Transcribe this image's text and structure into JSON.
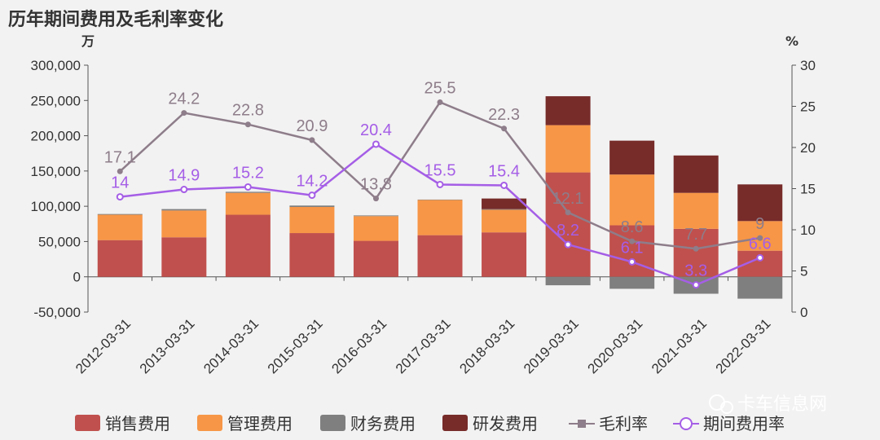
{
  "chart_data": {
    "type": "bar",
    "title": "历年期间费用及毛利率变化",
    "y_left_unit": "万",
    "y_right_unit": "%",
    "categories": [
      "2012-03-31",
      "2013-03-31",
      "2014-03-31",
      "2015-03-31",
      "2016-03-31",
      "2017-03-31",
      "2018-03-31",
      "2019-03-31",
      "2020-03-31",
      "2021-03-31",
      "2022-03-31"
    ],
    "y_left": {
      "min": -50000,
      "max": 300000,
      "ticks": [
        "300,000",
        "250,000",
        "200,000",
        "150,000",
        "100,000",
        "50,000",
        "0",
        "-50,000"
      ]
    },
    "y_right": {
      "min": 0,
      "max": 30,
      "ticks": [
        "30",
        "25",
        "20",
        "15",
        "10",
        "5",
        "0"
      ]
    },
    "stack_series": [
      {
        "name": "销售费用",
        "color": "#c0504d",
        "values": [
          52000,
          56000,
          88000,
          62000,
          51000,
          59000,
          63000,
          148000,
          73000,
          68000,
          37000
        ]
      },
      {
        "name": "管理费用",
        "color": "#f79646",
        "values": [
          36000,
          38000,
          31000,
          37000,
          35000,
          50000,
          32000,
          67000,
          72000,
          51000,
          42000
        ]
      },
      {
        "name": "财务费用",
        "color": "#7f7f7f",
        "values": [
          1000,
          2000,
          1500,
          2000,
          1000,
          500,
          1000,
          -12000,
          -17000,
          -24000,
          -31000
        ]
      },
      {
        "name": "研发费用",
        "color": "#772c2a",
        "values": [
          0,
          0,
          0,
          0,
          0,
          0,
          15000,
          41000,
          48000,
          53000,
          52000
        ]
      }
    ],
    "line_series": [
      {
        "name": "毛利率",
        "color": "#8e7d8a",
        "values": [
          17.1,
          24.2,
          22.8,
          20.9,
          13.8,
          25.5,
          22.3,
          12.1,
          8.6,
          7.7,
          9
        ],
        "labels": [
          "17.1",
          "24.2",
          "22.8",
          "20.9",
          "13.8",
          "25.5",
          "22.3",
          "12.1",
          "8.6",
          "7.7",
          "9"
        ]
      },
      {
        "name": "期间费用率",
        "color": "#a55ee6",
        "values": [
          14,
          14.9,
          15.2,
          14.2,
          20.4,
          15.5,
          15.4,
          8.2,
          6.1,
          3.3,
          6.6
        ],
        "labels": [
          "14",
          "14.9",
          "15.2",
          "14.2",
          "20.4",
          "15.5",
          "15.4",
          "8.2",
          "6.1",
          "3.3",
          "6.6"
        ]
      }
    ],
    "legend_position": "bottom",
    "grid": false
  },
  "watermark": "卡车信息网"
}
